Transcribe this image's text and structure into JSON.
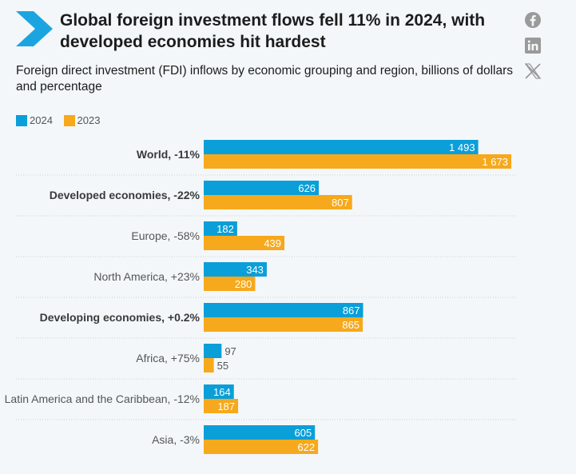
{
  "header": {
    "title": "Global foreign investment flows fell 11% in 2024, with developed economies hit hardest",
    "subtitle": "Foreign direct investment (FDI) inflows by economic grouping and region, billions of dollars and percentage"
  },
  "icons": {
    "logo": "chevron-logo",
    "share": [
      "facebook-icon",
      "linkedin-icon",
      "x-icon"
    ]
  },
  "colors": {
    "series_2024": "#0a9fd8",
    "series_2023": "#f6a91c",
    "logo": "#1ba5e0",
    "icon": "#9a9a9a",
    "divider": "#cfcfcf"
  },
  "chart_data": {
    "type": "bar",
    "orientation": "horizontal",
    "categories": [
      "World, -11%",
      "Developed economies, -22%",
      "Europe, -58%",
      "North America, +23%",
      "Developing economies, +0.2%",
      "Africa, +75%",
      "Latin America and the Caribbean, -12%",
      "Asia, -3%"
    ],
    "bold_categories": [
      true,
      true,
      false,
      false,
      true,
      false,
      false,
      false
    ],
    "series": [
      {
        "name": "2024",
        "values": [
          1493,
          626,
          182,
          343,
          867,
          97,
          164,
          605
        ],
        "labels": [
          "1 493",
          "626",
          "182",
          "343",
          "867",
          "97",
          "164",
          "605"
        ]
      },
      {
        "name": "2023",
        "values": [
          1673,
          807,
          439,
          280,
          865,
          55,
          187,
          622
        ],
        "labels": [
          "1 673",
          "807",
          "439",
          "280",
          "865",
          "55",
          "187",
          "622"
        ]
      }
    ],
    "xlim": [
      0,
      1673
    ],
    "legend": "top-left",
    "grid": false
  }
}
